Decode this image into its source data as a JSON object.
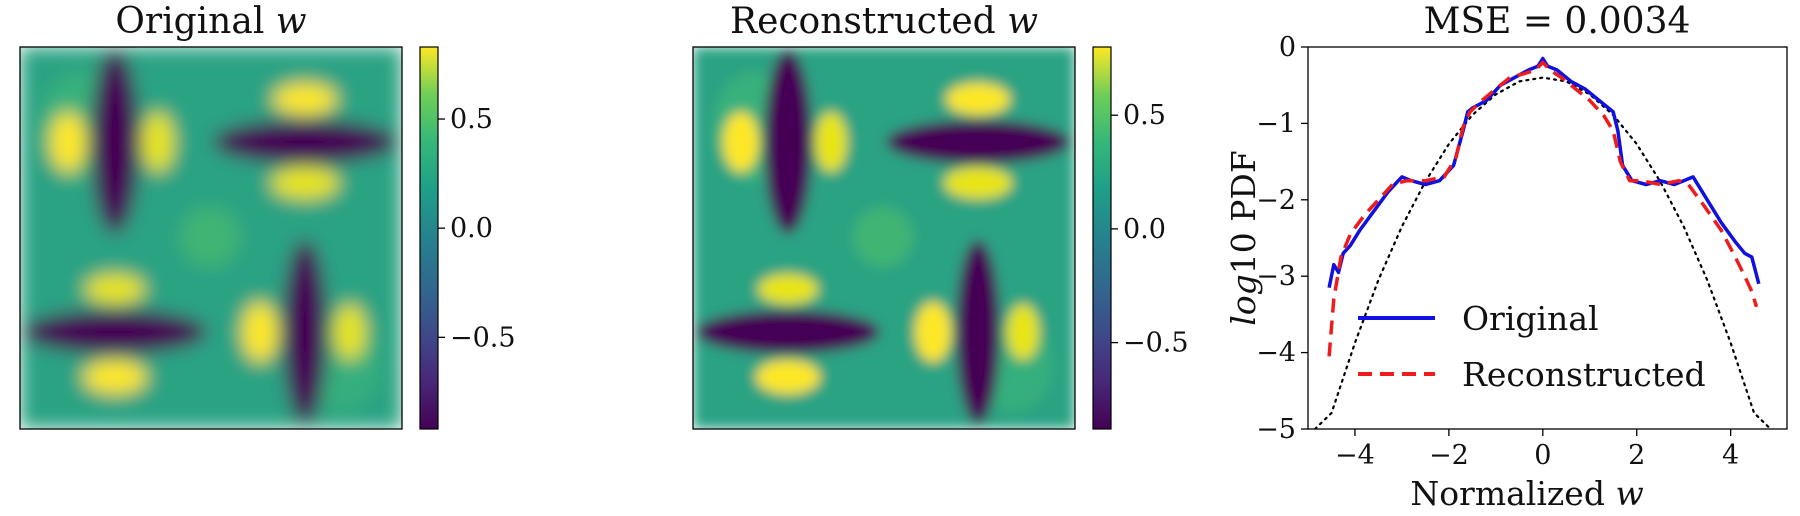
{
  "figure": {
    "panel1": {
      "title_main": "Original ",
      "title_var": "w",
      "colorbar_ticks": [
        "0.5",
        "0.0",
        "−0.5"
      ],
      "colorbar_tick_values": [
        0.5,
        0.0,
        -0.5
      ],
      "colorbar_range": [
        -0.92,
        0.83
      ]
    },
    "panel2": {
      "title_main": "Reconstructed ",
      "title_var": "w",
      "colorbar_ticks": [
        "0.5",
        "0.0",
        "−0.5"
      ],
      "colorbar_tick_values": [
        0.5,
        0.0,
        -0.5
      ],
      "colorbar_range": [
        -0.88,
        0.8
      ]
    },
    "panel3": {
      "title": "MSE = 0.0034",
      "xlabel_main": "Normalized ",
      "xlabel_var": "w",
      "ylabel_var": "log",
      "ylabel_main": "10 PDF",
      "xticks": [
        "−4",
        "−2",
        "0",
        "2",
        "4"
      ],
      "yticks": [
        "0",
        "−1",
        "−2",
        "−3",
        "−4",
        "−5"
      ],
      "legend": [
        "Original",
        "Reconstructed"
      ]
    },
    "colors": {
      "original": "#1010e0",
      "reconstructed": "#ee1c1c",
      "gaussian": "#000000"
    }
  },
  "chart_data": [
    {
      "type": "heatmap",
      "title": "Original w",
      "colormap": "viridis",
      "colorbar": {
        "range": [
          -0.92,
          0.83
        ],
        "ticks": [
          0.5,
          0.0,
          -0.5
        ]
      },
      "features": [
        {
          "shape": "vertical-bar",
          "quadrant": "top-left",
          "value": -0.9
        },
        {
          "shape": "horizontal-bar",
          "quadrant": "top-right",
          "value": -0.9
        },
        {
          "shape": "horizontal-bar",
          "quadrant": "bottom-left",
          "value": -0.9
        },
        {
          "shape": "vertical-bar",
          "quadrant": "bottom-right",
          "value": -0.9
        },
        {
          "shape": "lobes",
          "quadrant": "all",
          "value": 0.8
        }
      ]
    },
    {
      "type": "heatmap",
      "title": "Reconstructed w",
      "colormap": "viridis",
      "colorbar": {
        "range": [
          -0.88,
          0.8
        ],
        "ticks": [
          0.5,
          0.0,
          -0.5
        ]
      },
      "features": [
        {
          "shape": "vertical-bar",
          "quadrant": "top-left",
          "value": -0.85
        },
        {
          "shape": "horizontal-bar",
          "quadrant": "top-right",
          "value": -0.85
        },
        {
          "shape": "horizontal-bar",
          "quadrant": "bottom-left",
          "value": -0.85
        },
        {
          "shape": "vertical-bar",
          "quadrant": "bottom-right",
          "value": -0.85
        },
        {
          "shape": "lobes",
          "quadrant": "all",
          "value": 0.75
        }
      ]
    },
    {
      "type": "line",
      "title": "MSE = 0.0034",
      "xlabel": "Normalized w",
      "ylabel": "log10 PDF",
      "xlim": [
        -5.0,
        5.2
      ],
      "ylim": [
        -5,
        0
      ],
      "xticks": [
        -4,
        -2,
        0,
        2,
        4
      ],
      "yticks": [
        0,
        -1,
        -2,
        -3,
        -4,
        -5
      ],
      "legend_position": "lower-left",
      "series": [
        {
          "name": "Original",
          "style": "solid",
          "x": [
            -4.55,
            -4.45,
            -4.35,
            -4.25,
            -4.1,
            -3.9,
            -3.6,
            -3.3,
            -3.0,
            -2.8,
            -2.5,
            -2.2,
            -1.9,
            -1.7,
            -1.6,
            -1.5,
            -1.2,
            -0.9,
            -0.6,
            -0.3,
            -0.1,
            0.0,
            0.1,
            0.3,
            0.6,
            0.9,
            1.2,
            1.5,
            1.6,
            1.7,
            1.9,
            2.2,
            2.5,
            2.8,
            3.0,
            3.2,
            3.5,
            3.8,
            4.1,
            4.3,
            4.45,
            4.6
          ],
          "y": [
            -3.15,
            -2.85,
            -2.95,
            -2.7,
            -2.6,
            -2.4,
            -2.15,
            -1.9,
            -1.7,
            -1.75,
            -1.8,
            -1.75,
            -1.55,
            -1.1,
            -0.85,
            -0.8,
            -0.7,
            -0.5,
            -0.4,
            -0.3,
            -0.25,
            -0.15,
            -0.25,
            -0.3,
            -0.45,
            -0.55,
            -0.7,
            -0.85,
            -1.1,
            -1.55,
            -1.75,
            -1.8,
            -1.75,
            -1.8,
            -1.75,
            -1.7,
            -2.0,
            -2.3,
            -2.55,
            -2.7,
            -2.75,
            -3.1
          ]
        },
        {
          "name": "Reconstructed",
          "style": "dashed",
          "x": [
            -4.55,
            -4.45,
            -4.3,
            -4.1,
            -3.8,
            -3.5,
            -3.2,
            -2.9,
            -2.5,
            -2.1,
            -1.85,
            -1.7,
            -1.55,
            -1.3,
            -1.0,
            -0.7,
            -0.4,
            -0.15,
            0.0,
            0.15,
            0.4,
            0.7,
            1.0,
            1.3,
            1.5,
            1.65,
            1.85,
            2.1,
            2.5,
            2.9,
            3.1,
            3.4,
            3.8,
            4.1,
            4.3,
            4.45,
            4.55
          ],
          "y": [
            -4.05,
            -3.3,
            -2.75,
            -2.45,
            -2.2,
            -2.0,
            -1.8,
            -1.75,
            -1.75,
            -1.7,
            -1.45,
            -1.05,
            -0.85,
            -0.7,
            -0.55,
            -0.4,
            -0.35,
            -0.3,
            -0.2,
            -0.3,
            -0.4,
            -0.55,
            -0.7,
            -0.9,
            -1.1,
            -1.5,
            -1.75,
            -1.75,
            -1.8,
            -1.75,
            -1.8,
            -2.05,
            -2.4,
            -2.75,
            -3.0,
            -3.2,
            -3.4
          ]
        },
        {
          "style": "dotted",
          "x": [
            -4.85,
            -4.5,
            -4.0,
            -3.5,
            -3.0,
            -2.5,
            -2.0,
            -1.5,
            -1.0,
            -0.5,
            0.0,
            0.5,
            1.0,
            1.5,
            2.0,
            2.5,
            3.0,
            3.5,
            4.0,
            4.5,
            4.85
          ],
          "y": [
            -5.0,
            -4.79,
            -3.87,
            -3.05,
            -2.35,
            -1.76,
            -1.27,
            -0.89,
            -0.62,
            -0.45,
            -0.4,
            -0.45,
            -0.62,
            -0.89,
            -1.27,
            -1.76,
            -2.35,
            -3.05,
            -3.87,
            -4.79,
            -5.0
          ]
        }
      ]
    }
  ]
}
